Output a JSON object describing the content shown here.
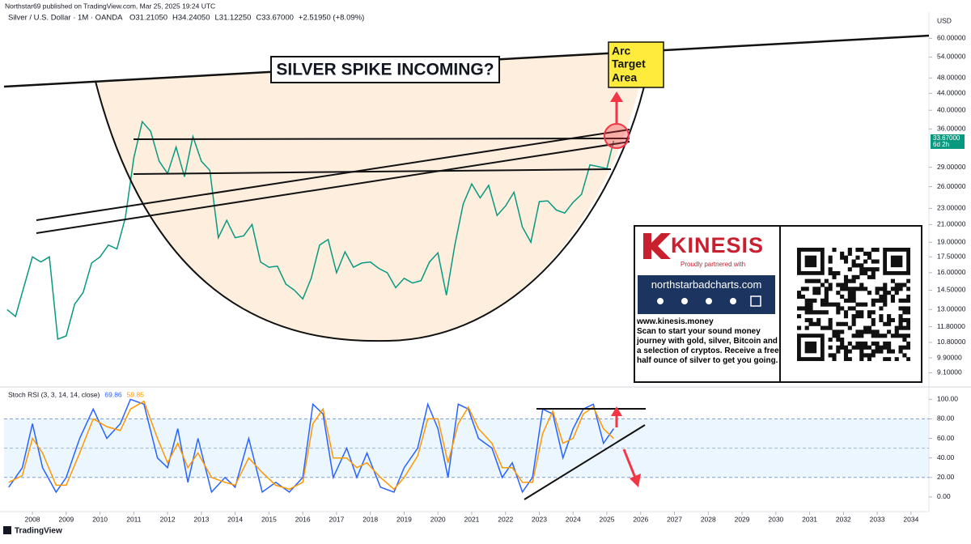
{
  "header": {
    "byline": "Northstar69 published on TradingView.com, Mar 25, 2025 19:24 UTC",
    "footer": "TradingView"
  },
  "annotations": {
    "headline": "SILVER SPIKE INCOMING?",
    "target": [
      "Arc",
      "Target",
      "Area"
    ]
  },
  "ad": {
    "brand": "KINESIS",
    "partner": "Proudly partnered with",
    "site": "northstarbadcharts.com",
    "url": "www.kinesis.money",
    "text": "Scan to start your sound money journey with gold, silver, Bitcoin and a selection of cryptos. Receive a free half ounce of silver to get you going."
  },
  "chart_data": [
    {
      "type": "line",
      "title": "Silver / U.S. Dollar · 1M · OANDA",
      "ohlc": [
        "O31.21050",
        "H34.24050",
        "L31.12250",
        "C33.67000",
        "+2.51950 (+8.09%)"
      ],
      "y_label": "USD",
      "price_label": "33.67000",
      "countdown": "6d 2h",
      "log_scale": true,
      "color": "#089981",
      "x": [
        2007.25,
        2007.5,
        2007.75,
        2008,
        2008.25,
        2008.5,
        2008.75,
        2009,
        2009.25,
        2009.5,
        2009.75,
        2010,
        2010.25,
        2010.5,
        2010.75,
        2011,
        2011.25,
        2011.5,
        2011.75,
        2012,
        2012.25,
        2012.5,
        2012.75,
        2013,
        2013.25,
        2013.5,
        2013.75,
        2014,
        2014.25,
        2014.5,
        2014.75,
        2015,
        2015.25,
        2015.5,
        2015.75,
        2016,
        2016.25,
        2016.5,
        2016.75,
        2017,
        2017.25,
        2017.5,
        2017.75,
        2018,
        2018.25,
        2018.5,
        2018.75,
        2019,
        2019.25,
        2019.5,
        2019.75,
        2020,
        2020.25,
        2020.5,
        2020.75,
        2021,
        2021.25,
        2021.5,
        2021.75,
        2022,
        2022.25,
        2022.5,
        2022.75,
        2023,
        2023.25,
        2023.5,
        2023.75,
        2024,
        2024.25,
        2024.5,
        2024.75,
        2025,
        2025.2
      ],
      "values": [
        13,
        12.5,
        14.8,
        17.5,
        17,
        17.5,
        11,
        11.2,
        13.4,
        14.3,
        16.9,
        17.5,
        18.7,
        18.3,
        21.8,
        30.6,
        37.5,
        35.5,
        30,
        28,
        32.5,
        27.5,
        34.5,
        30,
        28.5,
        19.5,
        21.5,
        19.5,
        19.7,
        21,
        17,
        16.5,
        16.6,
        15,
        14.5,
        13.8,
        15.5,
        18.7,
        19.3,
        16,
        18,
        16.5,
        16.9,
        17,
        16.4,
        16,
        14.7,
        15.5,
        15.1,
        15.3,
        17,
        17.9,
        14.1,
        18.7,
        23.6,
        26.4,
        24.4,
        26.2,
        22.1,
        23.3,
        25.2,
        20.7,
        19,
        23.9,
        24,
        22.8,
        22.4,
        23.8,
        24.9,
        29.4,
        29.1,
        28.8,
        33.67
      ],
      "xlim": [
        2007.16,
        2034.53
      ],
      "ylim": [
        8.4,
        68
      ],
      "yticks": [
        {
          "value": 9.1,
          "label": "9.10000"
        },
        {
          "value": 9.9,
          "label": "9.90000"
        },
        {
          "value": 10.8,
          "label": "10.80000"
        },
        {
          "value": 11.8,
          "label": "11.80000"
        },
        {
          "value": 13,
          "label": "13.00000"
        },
        {
          "value": 14.5,
          "label": "14.50000"
        },
        {
          "value": 16,
          "label": "16.00000"
        },
        {
          "value": 17.5,
          "label": "17.50000"
        },
        {
          "value": 19,
          "label": "19.00000"
        },
        {
          "value": 21,
          "label": "21.00000"
        },
        {
          "value": 23,
          "label": "23.00000"
        },
        {
          "value": 26,
          "label": "26.00000"
        },
        {
          "value": 29,
          "label": "29.00000"
        },
        {
          "value": 36,
          "label": "36.00000"
        },
        {
          "value": 40,
          "label": "40.00000"
        },
        {
          "value": 44,
          "label": "44.00000"
        },
        {
          "value": 48,
          "label": "48.00000"
        },
        {
          "value": 54,
          "label": "54.00000"
        },
        {
          "value": 60,
          "label": "60.00000"
        }
      ]
    },
    {
      "type": "line",
      "title": "Stoch RSI (3, 3, 14, 14, close)",
      "x": [
        2007.3,
        2007.7,
        2008.0,
        2008.3,
        2008.7,
        2009.0,
        2009.4,
        2009.8,
        2010.2,
        2010.6,
        2010.9,
        2011.3,
        2011.7,
        2012.0,
        2012.3,
        2012.6,
        2012.9,
        2013.3,
        2013.7,
        2014.0,
        2014.4,
        2014.8,
        2015.2,
        2015.6,
        2016.0,
        2016.3,
        2016.6,
        2016.9,
        2017.3,
        2017.6,
        2017.9,
        2018.3,
        2018.7,
        2019.0,
        2019.4,
        2019.7,
        2020.0,
        2020.3,
        2020.6,
        2020.9,
        2021.2,
        2021.6,
        2021.9,
        2022.2,
        2022.5,
        2022.8,
        2023.1,
        2023.4,
        2023.7,
        2024.0,
        2024.3,
        2024.6,
        2024.9,
        2025.2
      ],
      "series": [
        {
          "color": "#2962ff",
          "values": [
            10,
            30,
            75,
            30,
            5,
            20,
            60,
            90,
            60,
            75,
            100,
            95,
            40,
            30,
            70,
            15,
            60,
            5,
            20,
            10,
            60,
            5,
            15,
            5,
            20,
            95,
            85,
            20,
            50,
            20,
            45,
            10,
            5,
            30,
            50,
            95,
            70,
            20,
            95,
            90,
            60,
            50,
            20,
            35,
            5,
            20,
            90,
            85,
            40,
            70,
            90,
            95,
            55,
            69.86
          ]
        },
        {
          "color": "#ff9800",
          "values": [
            15,
            22,
            60,
            45,
            12,
            12,
            45,
            80,
            72,
            68,
            90,
            98,
            60,
            35,
            55,
            30,
            45,
            20,
            15,
            12,
            40,
            25,
            12,
            8,
            15,
            75,
            90,
            40,
            40,
            30,
            35,
            20,
            8,
            20,
            42,
            80,
            80,
            35,
            75,
            92,
            70,
            55,
            30,
            30,
            15,
            15,
            65,
            88,
            55,
            60,
            85,
            92,
            70,
            59.85
          ]
        }
      ],
      "band": [
        20,
        80
      ],
      "midline": 50,
      "xlim": [
        2007.16,
        2034.53
      ],
      "ylim": [
        -15,
        111
      ],
      "xticks": [
        2008,
        2009,
        2010,
        2011,
        2012,
        2013,
        2014,
        2015,
        2016,
        2017,
        2018,
        2019,
        2020,
        2021,
        2022,
        2023,
        2024,
        2025,
        2026,
        2027,
        2028,
        2029,
        2030,
        2031,
        2032,
        2033,
        2034
      ],
      "yticks": [
        {
          "value": 0,
          "label": "0.00"
        },
        {
          "value": 20,
          "label": "20.00"
        },
        {
          "value": 40,
          "label": "40.00"
        },
        {
          "value": 60,
          "label": "60.00"
        },
        {
          "value": 80,
          "label": "80.00"
        },
        {
          "value": 100,
          "label": "100.00"
        }
      ]
    }
  ]
}
